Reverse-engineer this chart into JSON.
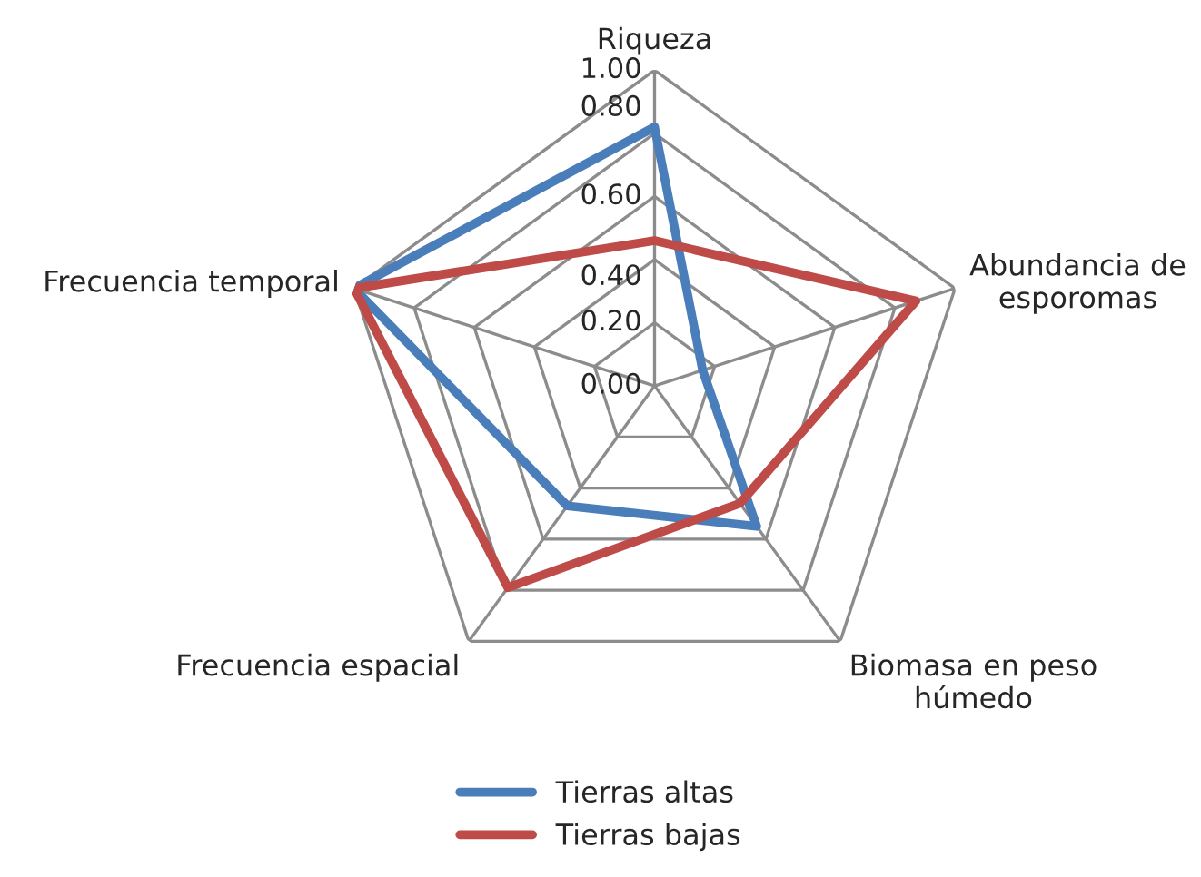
{
  "chart_data": {
    "type": "radar",
    "categories": [
      "Riqueza",
      "Abundancia de esporomas",
      "Biomasa en peso húmedo",
      "Frecuencia espacial",
      "Frecuencia temporal"
    ],
    "series": [
      {
        "name": "Tierras altas",
        "color": "#4a7ebb",
        "values": [
          0.82,
          0.16,
          0.55,
          0.47,
          1.0
        ]
      },
      {
        "name": "Tierras bajas",
        "color": "#be4b48",
        "values": [
          0.46,
          0.87,
          0.46,
          0.79,
          1.0
        ]
      }
    ],
    "ylim": [
      0,
      1
    ],
    "yticks": [
      {
        "value": 0,
        "label": "0.00"
      },
      {
        "value": 0.2,
        "label": "0.20"
      },
      {
        "value": 0.4,
        "label": "0.40"
      },
      {
        "value": 0.6,
        "label": "0.60"
      },
      {
        "value": 0.8,
        "label": "0.80"
      },
      {
        "value": 1.0,
        "label": "1.00"
      }
    ],
    "grid": true,
    "legend": "bottom",
    "marker": "none",
    "line_style": "solid"
  }
}
